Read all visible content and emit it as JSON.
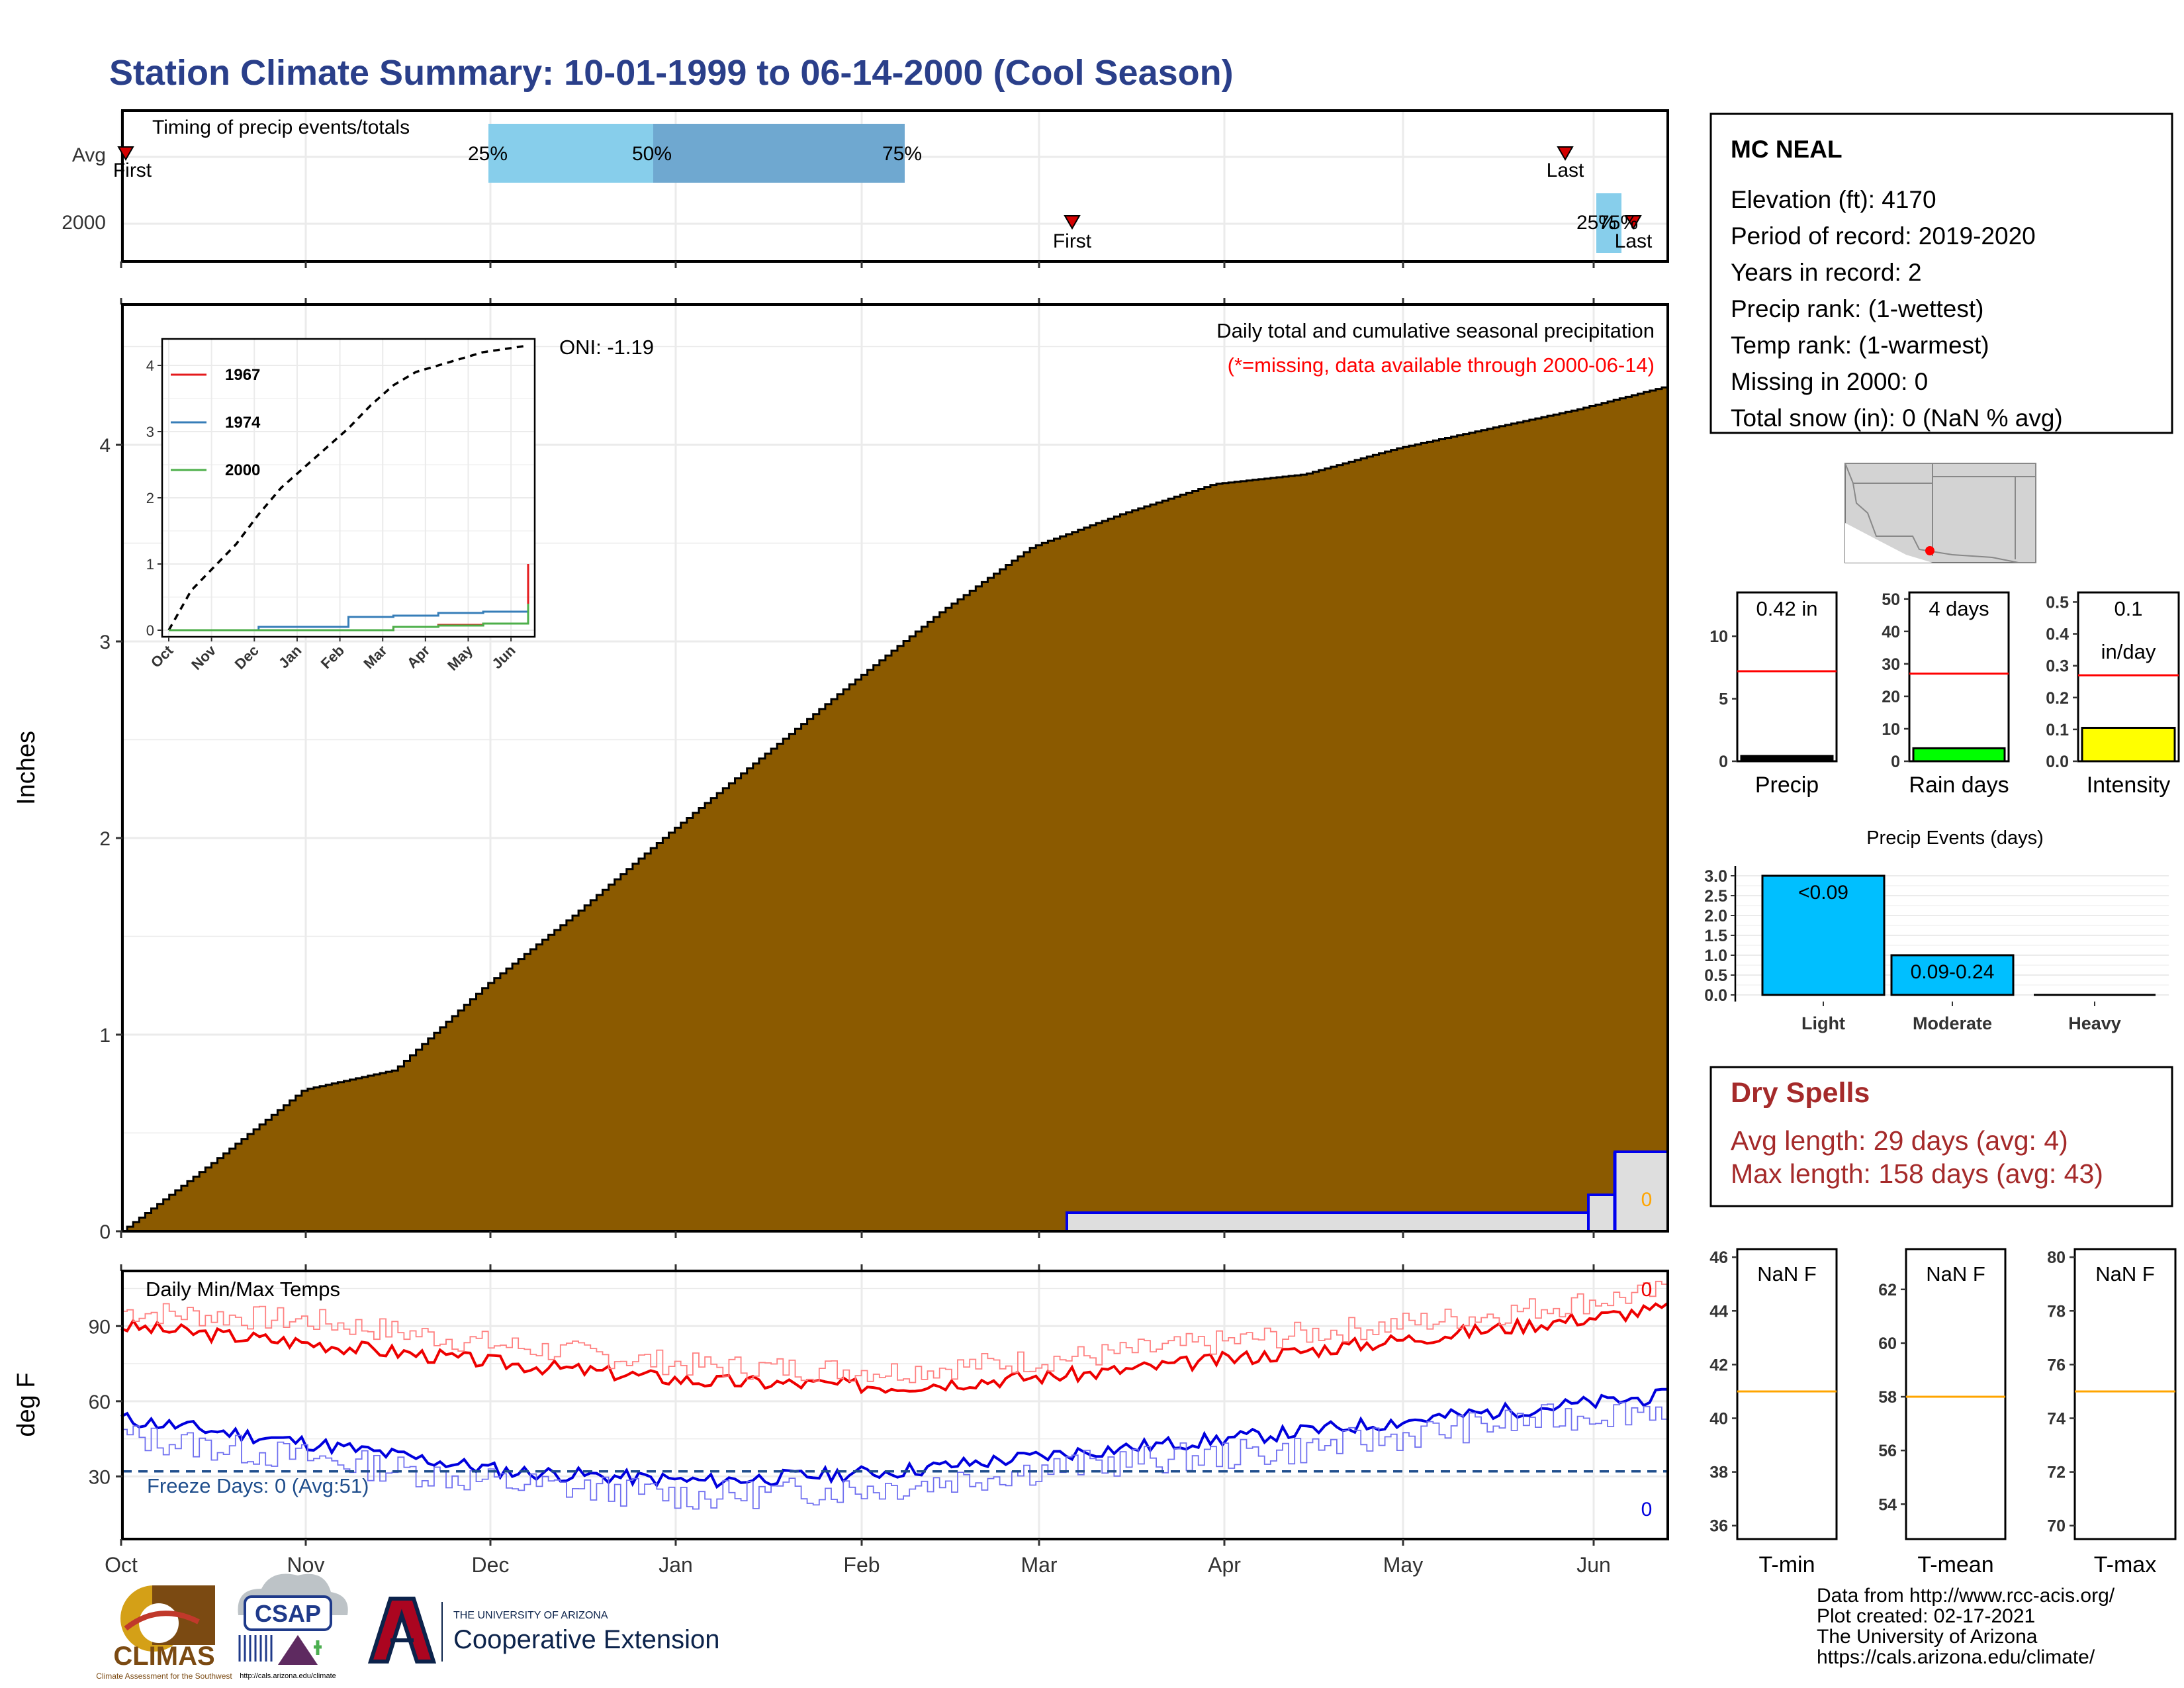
{
  "title": "Station Climate Summary: 10-01-1999 to 06-14-2000 (Cool Season)",
  "months": [
    "Oct",
    "Nov",
    "Dec",
    "Jan",
    "Feb",
    "Mar",
    "Apr",
    "May",
    "Jun"
  ],
  "timing": {
    "title": "Timing of precip events/totals",
    "rows": [
      "Avg",
      "2000"
    ],
    "avg_first": "First",
    "avg_last": "Last",
    "p25": "25%",
    "p50": "50%",
    "p75": "75%",
    "y2000_first": "First",
    "y2000_last": "Last",
    "y2000_pct": "25%",
    "y2000_pct_overlap": "75%"
  },
  "main": {
    "ylabel": "Inches",
    "yticks": [
      "0",
      "1",
      "2",
      "3",
      "4"
    ],
    "note1": "Daily total and cumulative seasonal precipitation",
    "note2": "(*=missing, data available through 2000-06-14)",
    "oni": "ONI: -1.19",
    "zero_label": "0",
    "inset": {
      "legend": [
        "1967",
        "1974",
        "2000"
      ],
      "colors": [
        "#e41a1c",
        "#377eb8",
        "#4daf4a"
      ],
      "yticks": [
        "0",
        "1",
        "2",
        "3",
        "4"
      ],
      "xticks": [
        "Oct",
        "Nov",
        "Dec",
        "Jan",
        "Feb",
        "Mar",
        "Apr",
        "May",
        "Jun"
      ]
    }
  },
  "temps": {
    "title": "Daily Min/Max Temps",
    "ylabel": "deg F",
    "yticks": [
      "30",
      "60",
      "90"
    ],
    "freeze": "Freeze Days: 0 (Avg:51)",
    "max_zero": "0",
    "min_zero": "0"
  },
  "station": {
    "name": "MC NEAL",
    "lines": [
      "Elevation (ft): 4170",
      "Period of record: 2019-2020",
      "Years in record: 2",
      "Precip rank:  (1-wettest)",
      "Temp rank:  (1-warmest)",
      "Missing in 2000: 0",
      "Total snow (in): 0 (NaN % avg)"
    ]
  },
  "mini_bars": [
    {
      "label": "Precip",
      "value_text": "0.42 in",
      "yticks": [
        "0",
        "5",
        "10"
      ],
      "ymax": 13.5,
      "value": 0.42,
      "avg": 7.2,
      "fill": "#000000"
    },
    {
      "label": "Rain days",
      "value_text": "4 days",
      "yticks": [
        "0",
        "10",
        "20",
        "30",
        "40",
        "50"
      ],
      "ymax": 52,
      "value": 4,
      "avg": 27,
      "fill": "#00ff00"
    },
    {
      "label": "Intensity",
      "value_text": "0.1",
      "value_text2": "in/day",
      "yticks": [
        "0.0",
        "0.1",
        "0.2",
        "0.3",
        "0.4",
        "0.5"
      ],
      "ymax": 0.53,
      "value": 0.105,
      "avg": 0.27,
      "fill": "#ffff00"
    }
  ],
  "events": {
    "title": "Precip Events (days)",
    "categories": [
      "Light",
      "Moderate",
      "Heavy"
    ],
    "values": [
      3,
      1,
      0
    ],
    "labels": [
      "<0.09",
      "0.09-0.24",
      ""
    ],
    "yticks": [
      "0.0",
      "0.5",
      "1.0",
      "1.5",
      "2.0",
      "2.5",
      "3.0"
    ]
  },
  "dry": {
    "title": "Dry Spells",
    "avg": "Avg length: 29 days (avg: 4)",
    "max": "Max length: 158 days (avg: 43)"
  },
  "temp_bars": [
    {
      "label": "T-min",
      "value_text": "NaN F",
      "yticks": [
        "36",
        "38",
        "40",
        "42",
        "44",
        "46"
      ],
      "ymin": 35.5,
      "ymax": 46.3,
      "avg": 41
    },
    {
      "label": "T-mean",
      "value_text": "NaN F",
      "yticks": [
        "54",
        "56",
        "58",
        "60",
        "62"
      ],
      "ymin": 52.7,
      "ymax": 63.5,
      "avg": 58
    },
    {
      "label": "T-max",
      "value_text": "NaN F",
      "yticks": [
        "70",
        "72",
        "74",
        "76",
        "78",
        "80"
      ],
      "ymin": 69.5,
      "ymax": 80.3,
      "avg": 75
    }
  ],
  "footer": {
    "lines": [
      "Data from http://www.rcc-acis.org/",
      "Plot created: 02-17-2021",
      "The University of Arizona",
      "https://cals.arizona.edu/climate/"
    ],
    "climas": "CLIMAS",
    "climas_sub": "Climate Assessment for the Southwest",
    "csap": "CSAP",
    "csap_url": "http://cals.arizona.edu/climate",
    "ua_small": "THE UNIVERSITY OF ARIZONA",
    "ua_big": "Cooperative Extension"
  },
  "chart_data": [
    {
      "type": "area",
      "title": "Daily total and cumulative seasonal precipitation",
      "ylabel": "Inches",
      "x": [
        "Oct 1",
        "Oct 15",
        "Nov 1",
        "Nov 15",
        "Dec 1",
        "Dec 15",
        "Jan 1",
        "Jan 15",
        "Feb 1",
        "Feb 15",
        "Mar 1",
        "Mar 15",
        "Apr 1",
        "Apr 15",
        "May 1",
        "May 15",
        "Jun 1",
        "Jun 14"
      ],
      "series": [
        {
          "values": [
            0.0,
            0.35,
            0.72,
            0.82,
            1.25,
            1.62,
            2.02,
            2.4,
            2.78,
            3.15,
            3.48,
            3.65,
            3.8,
            3.85,
            3.98,
            4.08,
            4.18,
            4.3
          ]
        }
      ],
      "ylim": [
        0,
        4.7
      ]
    },
    {
      "type": "line",
      "ylim": [
        0,
        4.5
      ],
      "x": [
        "Oct",
        "Nov",
        "Dec",
        "Jan",
        "Feb",
        "Mar",
        "Apr",
        "May",
        "Jun"
      ],
      "series": [
        {
          "name": "1967",
          "values": [
            0,
            0,
            0,
            0,
            0,
            0.05,
            0.08,
            0.1,
            1.0
          ]
        },
        {
          "name": "1974",
          "values": [
            0,
            0,
            0.05,
            0.05,
            0.2,
            0.22,
            0.26,
            0.28,
            0.3
          ]
        },
        {
          "name": "2000",
          "values": [
            0,
            0,
            0,
            0,
            0,
            0.05,
            0.07,
            0.1,
            0.4
          ]
        }
      ]
    },
    {
      "type": "line",
      "title": "Daily Min/Max Temps",
      "ylabel": "deg F",
      "x": [
        "Oct",
        "Nov",
        "Dec",
        "Jan",
        "Feb",
        "Mar",
        "Apr",
        "May",
        "Jun"
      ],
      "series": [
        {
          "values": [
            90,
            83,
            75,
            68,
            66,
            71,
            79,
            88,
            97
          ]
        },
        {
          "values": [
            96,
            92,
            82,
            74,
            72,
            78,
            86,
            94,
            104
          ]
        },
        {
          "values": [
            53,
            43,
            32,
            28,
            32,
            40,
            47,
            55,
            62
          ]
        },
        {
          "values": [
            46,
            37,
            27,
            22,
            26,
            35,
            40,
            50,
            58
          ]
        }
      ],
      "ylim": [
        5,
        112
      ]
    },
    {
      "type": "bar",
      "title": "Precip Events (days)",
      "categories": [
        "Light",
        "Moderate",
        "Heavy"
      ],
      "values": [
        3,
        1,
        0
      ]
    }
  ]
}
